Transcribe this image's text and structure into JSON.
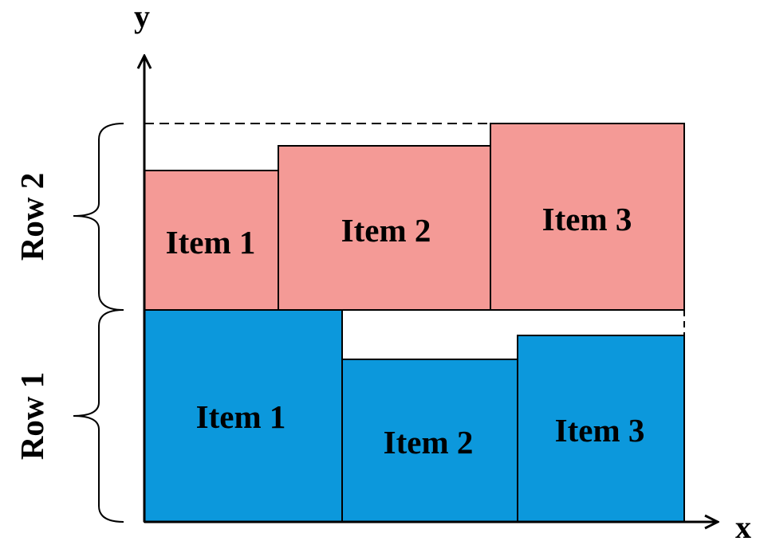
{
  "axes": {
    "x_label": "x",
    "y_label": "y"
  },
  "rows": [
    {
      "label": "Row 1",
      "color": "#0c98dc",
      "items": [
        {
          "label": "Item 1"
        },
        {
          "label": "Item 2"
        },
        {
          "label": "Item 3"
        }
      ]
    },
    {
      "label": "Row 2",
      "color": "#f49a96",
      "items": [
        {
          "label": "Item 1"
        },
        {
          "label": "Item 2"
        },
        {
          "label": "Item 3"
        }
      ]
    }
  ],
  "colors": {
    "stroke": "#000000",
    "background": "#ffffff"
  }
}
